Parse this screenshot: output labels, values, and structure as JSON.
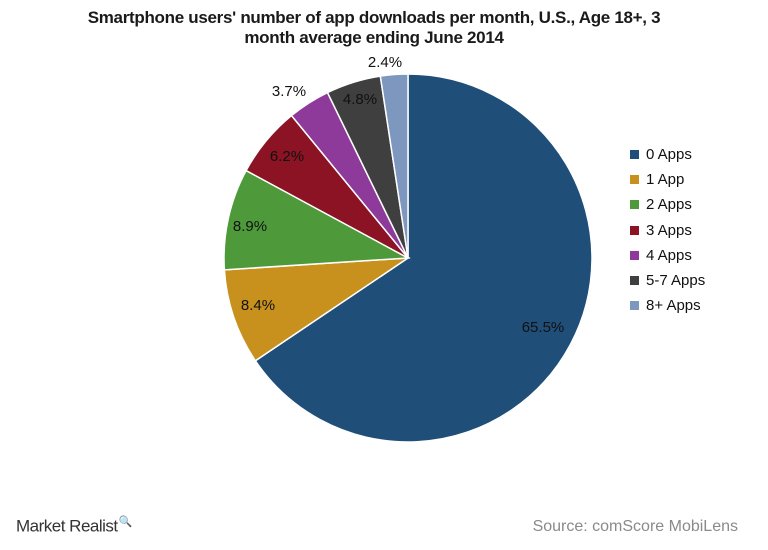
{
  "chart_data": {
    "type": "pie",
    "title_lines": [
      "Smartphone users' number of app downloads per month, U.S., Age 18+, 3",
      "month average ending June 2014"
    ],
    "slices": [
      {
        "label": "0 Apps",
        "value": 65.5,
        "display": "65.5%",
        "color": "#1f4e79"
      },
      {
        "label": "1 App",
        "value": 8.4,
        "display": "8.4%",
        "color": "#c8901c"
      },
      {
        "label": "2 Apps",
        "value": 8.9,
        "display": "8.9%",
        "color": "#4e9a3b"
      },
      {
        "label": "3 Apps",
        "value": 6.2,
        "display": "6.2%",
        "color": "#8b1324"
      },
      {
        "label": "4 Apps",
        "value": 3.7,
        "display": "3.7%",
        "color": "#8e3a9a"
      },
      {
        "label": "5-7 Apps",
        "value": 4.8,
        "display": "4.8%",
        "color": "#3f3f3f"
      },
      {
        "label": "8+ Apps",
        "value": 2.4,
        "display": "2.4%",
        "color": "#7d97bf"
      }
    ],
    "start": "12 o'clock",
    "direction": "clockwise",
    "legend_position": "right"
  },
  "footer": {
    "brand": "Market Realist",
    "brand_icon": "magnifier-icon",
    "source": "Source: comScore MobiLens"
  }
}
